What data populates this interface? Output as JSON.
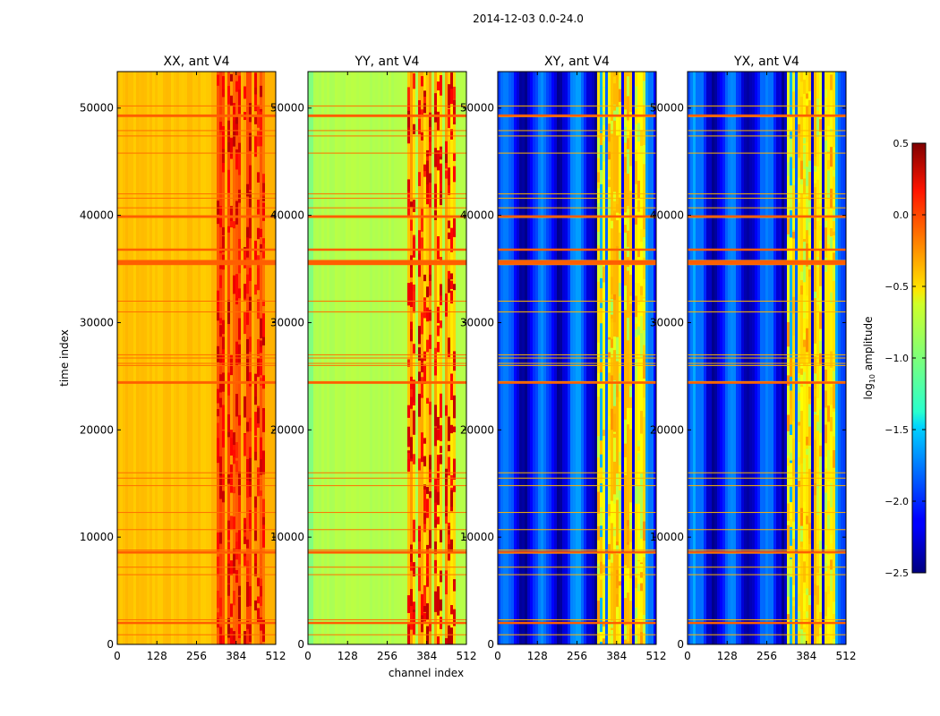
{
  "chart_data": {
    "type": "heatmap",
    "suptitle": "2014-12-03 0.0-24.0",
    "panels": [
      {
        "title": "XX, ant V4",
        "kind": "XX",
        "background_level": -0.55
      },
      {
        "title": "YY, ant V4",
        "kind": "YY",
        "background_level": -0.75
      },
      {
        "title": "XY, ant V4",
        "kind": "XY",
        "background_level": -2.0
      },
      {
        "title": "YX, ant V4",
        "kind": "YX",
        "background_level": -2.0
      }
    ],
    "xlabel": "channel index",
    "ylabel": "time index",
    "x_ticks": [
      0,
      128,
      256,
      384,
      512
    ],
    "xlim": [
      0,
      512
    ],
    "y_ticks": [
      0,
      10000,
      20000,
      30000,
      40000,
      50000
    ],
    "ylim": [
      0,
      53400
    ],
    "colorbar": {
      "label_base": "log",
      "label_sub": "10",
      "label_rest": " amplitude",
      "ticks": [
        "0.5",
        "0.0",
        "−0.5",
        "−1.0",
        "−1.5",
        "−2.0",
        "−2.5"
      ],
      "tick_values": [
        0.5,
        0.0,
        -0.5,
        -1.0,
        -1.5,
        -2.0,
        -2.5
      ],
      "range": [
        -2.5,
        0.5
      ],
      "colormap": "jet"
    },
    "flagged_rows_time_index": [
      900,
      2000,
      2300,
      6500,
      7200,
      8500,
      8800,
      10700,
      12300,
      14800,
      15500,
      16000,
      24500,
      26000,
      26200,
      26700,
      27000,
      31000,
      32000,
      35400,
      35600,
      35800,
      36800,
      39800,
      40700,
      41600,
      42000,
      45800,
      47400,
      47900,
      49200,
      50200
    ],
    "red_rows_time_index": [
      2000,
      8600,
      24400,
      35600,
      36800,
      39900,
      49300
    ],
    "bright_channel_bands": [
      [
        320,
        345
      ],
      [
        355,
        395
      ],
      [
        405,
        435
      ],
      [
        445,
        475
      ]
    ]
  }
}
